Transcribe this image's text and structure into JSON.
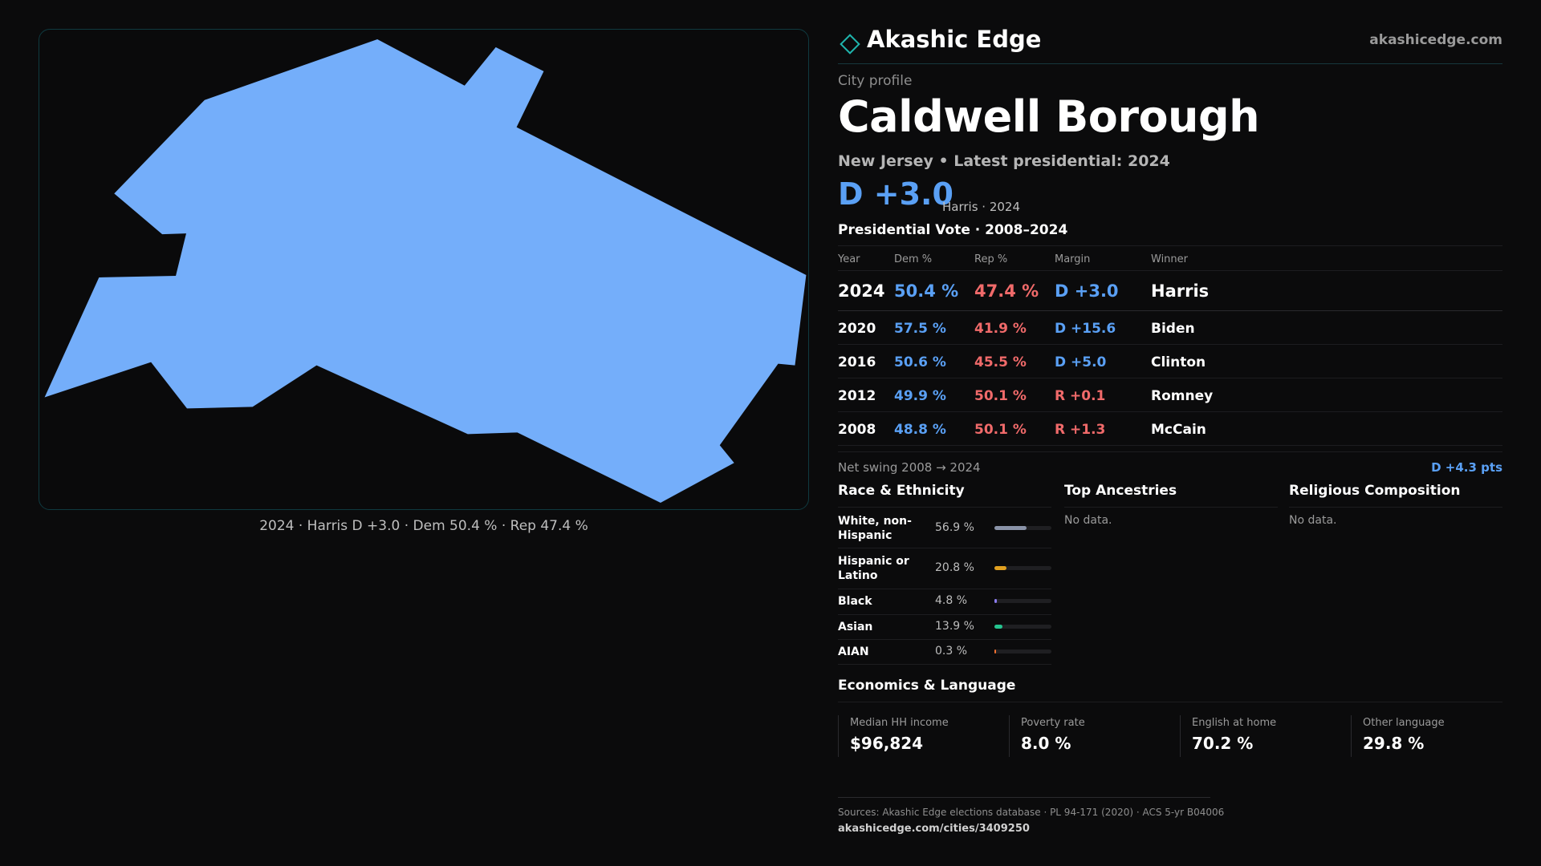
{
  "brand": {
    "name": "Akashic Edge",
    "site": "akashicedge.com",
    "accent": "#1fb5ad"
  },
  "profile": {
    "kicker": "City profile",
    "title": "Caldwell Borough",
    "subtitle": "New Jersey • Latest presidential: 2024",
    "margin": "D +3.0",
    "margin_note": "Harris · 2024"
  },
  "map": {
    "fill": "#74aefa",
    "caption": "2024 · Harris D +3.0 · Dem 50.4 % · Rep 47.4 %"
  },
  "vote": {
    "title": "Presidential Vote · 2008–2024",
    "headers": {
      "year": "Year",
      "dem": "Dem %",
      "rep": "Rep %",
      "margin": "Margin",
      "winner": "Winner"
    },
    "rows": [
      {
        "year": "2024",
        "dem": "50.4 %",
        "rep": "47.4 %",
        "margin": "D +3.0",
        "party": "D",
        "winner": "Harris"
      },
      {
        "year": "2020",
        "dem": "57.5 %",
        "rep": "41.9 %",
        "margin": "D +15.6",
        "party": "D",
        "winner": "Biden"
      },
      {
        "year": "2016",
        "dem": "50.6 %",
        "rep": "45.5 %",
        "margin": "D +5.0",
        "party": "D",
        "winner": "Clinton"
      },
      {
        "year": "2012",
        "dem": "49.9 %",
        "rep": "50.1 %",
        "margin": "R +0.1",
        "party": "R",
        "winner": "Romney"
      },
      {
        "year": "2008",
        "dem": "48.8 %",
        "rep": "50.1 %",
        "margin": "R +1.3",
        "party": "R",
        "winner": "McCain"
      }
    ],
    "swing_label": "Net swing 2008 → 2024",
    "swing_value": "D +4.3 pts"
  },
  "race": {
    "title": "Race & Ethnicity",
    "rows": [
      {
        "name": "White, non-Hispanic",
        "pct": "56.9 %",
        "value": 56.9,
        "color": "#8a93a8"
      },
      {
        "name": "Hispanic or Latino",
        "pct": "20.8 %",
        "value": 20.8,
        "color": "#e0a020"
      },
      {
        "name": "Black",
        "pct": "4.8 %",
        "value": 4.8,
        "color": "#8b7cf0"
      },
      {
        "name": "Asian",
        "pct": "13.9 %",
        "value": 13.9,
        "color": "#25c48f"
      },
      {
        "name": "AIAN",
        "pct": "0.3 %",
        "value": 0.3,
        "color": "#f07030"
      }
    ]
  },
  "ancestries": {
    "title": "Top Ancestries",
    "empty": "No data."
  },
  "religion": {
    "title": "Religious Composition",
    "empty": "No data."
  },
  "economics": {
    "title": "Economics & Language",
    "stats": [
      {
        "label": "Median HH income",
        "value": "$96,824"
      },
      {
        "label": "Poverty rate",
        "value": "8.0 %"
      },
      {
        "label": "English at home",
        "value": "70.2 %"
      },
      {
        "label": "Other language",
        "value": "29.8 %"
      }
    ]
  },
  "footer": {
    "sources": "Sources: Akashic Edge elections database · PL 94-171 (2020) · ACS 5-yr B04006",
    "url": "akashicedge.com/cities/3409250"
  }
}
